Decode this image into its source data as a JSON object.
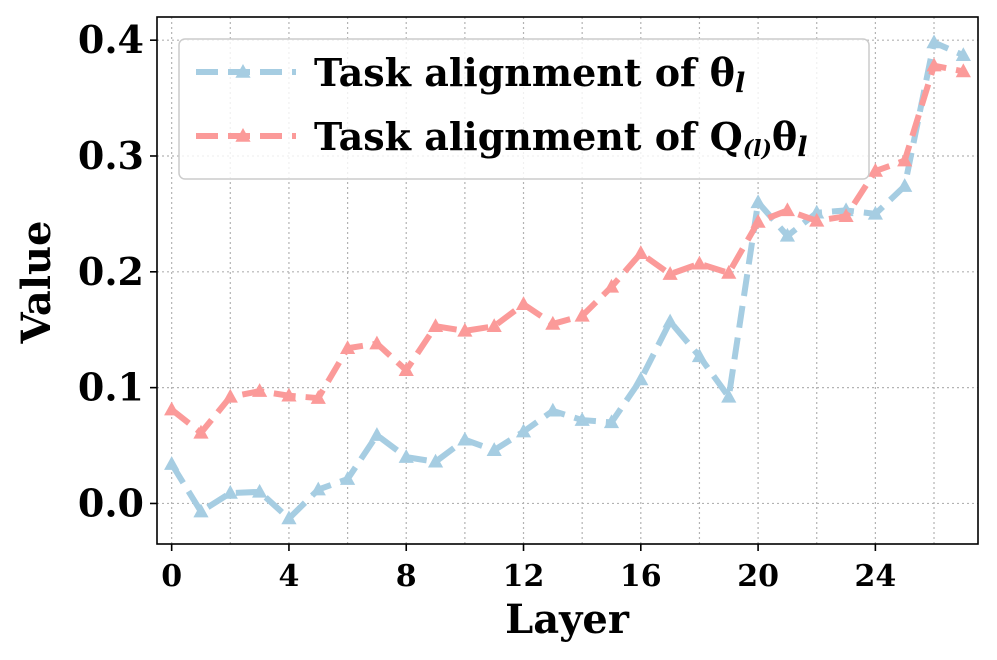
{
  "chart_data": {
    "type": "line",
    "xlabel": "Layer",
    "ylabel": "Value",
    "xlim": [
      -0.5,
      27.5
    ],
    "ylim": [
      -0.035,
      0.42
    ],
    "xticks": [
      0,
      4,
      8,
      12,
      16,
      20,
      24
    ],
    "yticks": [
      0.0,
      0.1,
      0.2,
      0.3,
      0.4
    ],
    "xtick_labels": [
      "0",
      "4",
      "8",
      "12",
      "16",
      "20",
      "24"
    ],
    "ytick_labels": [
      "0.0",
      "0.1",
      "0.2",
      "0.3",
      "0.4"
    ],
    "grid": true,
    "legend_position": "top-left",
    "x": [
      0,
      1,
      2,
      3,
      4,
      5,
      6,
      7,
      8,
      9,
      10,
      11,
      12,
      13,
      14,
      15,
      16,
      17,
      18,
      19,
      20,
      21,
      22,
      23,
      24,
      25,
      26,
      27
    ],
    "series": [
      {
        "name": "Task alignment of θl",
        "legend": {
          "main": "Task alignment of θ",
          "sub": "l"
        },
        "color": "#a6cde2",
        "values": [
          0.034,
          -0.007,
          0.009,
          0.01,
          -0.013,
          0.012,
          0.021,
          0.059,
          0.04,
          0.036,
          0.055,
          0.046,
          0.062,
          0.08,
          0.072,
          0.07,
          0.107,
          0.157,
          0.127,
          0.092,
          0.26,
          0.231,
          0.251,
          0.253,
          0.25,
          0.274,
          0.398,
          0.387
        ]
      },
      {
        "name": "Task alignment of Q(l)θl",
        "legend": {
          "main": "Task alignment of Q",
          "sub1": "(l)",
          "mid": "θ",
          "sub2": "l"
        },
        "color": "#fb9a99",
        "values": [
          0.081,
          0.061,
          0.092,
          0.097,
          0.093,
          0.091,
          0.134,
          0.138,
          0.115,
          0.153,
          0.149,
          0.153,
          0.172,
          0.155,
          0.162,
          0.187,
          0.216,
          0.198,
          0.207,
          0.199,
          0.243,
          0.253,
          0.244,
          0.248,
          0.287,
          0.296,
          0.378,
          0.373
        ]
      }
    ]
  }
}
